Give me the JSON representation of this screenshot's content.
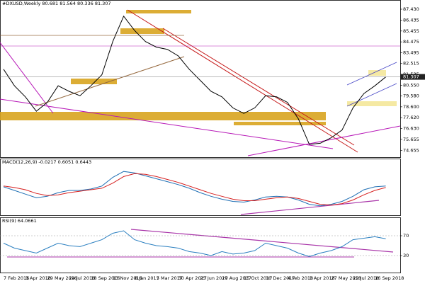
{
  "chart_data": [
    {
      "type": "line",
      "title": "#DXUSD,Weekly  80.681 81.564 80.336 81.307",
      "color": "#000000",
      "categories": [
        "7 Feb 2016",
        null,
        "3 Apr 2016",
        null,
        "29 May 2016",
        null,
        "24 Jul 2016",
        null,
        "18 Sep 2016",
        null,
        "13 Nov 2016",
        null,
        "8 Jan 2017",
        null,
        "5 Mar 2017",
        null,
        "30 Apr 2017",
        null,
        "25 Jun 2017",
        null,
        "20 Aug 2017",
        null,
        "15 Oct 2017",
        null,
        "10 Dec 2017",
        null,
        "4 Feb 2018",
        null,
        "1 Apr 2018",
        null,
        "27 May 2018",
        null,
        "22 Jul 2018",
        null,
        "16 Sep 2018",
        null
      ],
      "values": [
        82.0,
        80.5,
        79.5,
        78.2,
        79.0,
        80.5,
        80.0,
        79.6,
        80.5,
        81.5,
        84.5,
        86.8,
        85.5,
        84.5,
        84.0,
        83.8,
        83.2,
        82.0,
        81.0,
        80.0,
        79.5,
        78.5,
        78.0,
        78.5,
        79.6,
        79.5,
        79.0,
        77.5,
        75.2,
        75.3,
        75.8,
        76.5,
        78.5,
        79.8,
        80.5,
        81.3
      ],
      "ylim": [
        74.3,
        87.75
      ],
      "yticks": [
        {
          "value": 87.43,
          "label": "87.430"
        },
        86.435,
        85.455,
        84.475,
        83.495,
        82.515,
        81.535,
        {
          "value": 80.55,
          "label": "80.550"
        },
        {
          "value": 79.58,
          "label": "79.580"
        },
        {
          "value": 78.6,
          "label": "78.600"
        },
        {
          "value": 77.62,
          "label": "77.620"
        },
        {
          "value": 76.63,
          "label": "76.630"
        },
        75.655,
        74.655
      ],
      "last_price": 81.307
    },
    {
      "type": "line",
      "title": "MACD(12,26,9) -0.0217 0.6051 0.6443",
      "series": [
        {
          "color": "#1f6fb4",
          "values": [
            0.5,
            0,
            -0.5,
            -1,
            -0.8,
            -0.3,
            0,
            0,
            0.2,
            0.6,
            1.8,
            2.6,
            2.4,
            2,
            1.6,
            1.2,
            0.8,
            0.3,
            -0.3,
            -0.8,
            -1.2,
            -1.5,
            -1.6,
            -1.3,
            -0.9,
            -0.8,
            -0.9,
            -1.3,
            -1.9,
            -2.1,
            -1.9,
            -1.5,
            -0.8,
            0.1,
            0.5,
            0.6
          ]
        },
        {
          "color": "#d62020",
          "values": [
            0.6,
            0.4,
            0.1,
            -0.4,
            -0.7,
            -0.6,
            -0.3,
            -0.1,
            0.1,
            0.3,
            1,
            1.9,
            2.3,
            2.2,
            1.9,
            1.5,
            1.1,
            0.6,
            0.1,
            -0.4,
            -0.8,
            -1.2,
            -1.4,
            -1.4,
            -1.2,
            -1,
            -0.9,
            -1.1,
            -1.5,
            -1.9,
            -2,
            -1.8,
            -1.3,
            -0.6,
            0,
            0.4
          ]
        }
      ],
      "ylim": [
        -3,
        3.2
      ]
    },
    {
      "type": "line",
      "title": "RSI(9) 64.0661",
      "color": "#2a7fc0",
      "values": [
        55,
        45,
        40,
        35,
        45,
        55,
        50,
        48,
        55,
        62,
        75,
        80,
        62,
        55,
        50,
        48,
        45,
        38,
        35,
        30,
        38,
        33,
        35,
        40,
        55,
        50,
        45,
        35,
        28,
        35,
        40,
        48,
        62,
        65,
        68,
        64
      ],
      "ylim": [
        0,
        100
      ],
      "yticks": [
        70,
        30
      ]
    }
  ]
}
